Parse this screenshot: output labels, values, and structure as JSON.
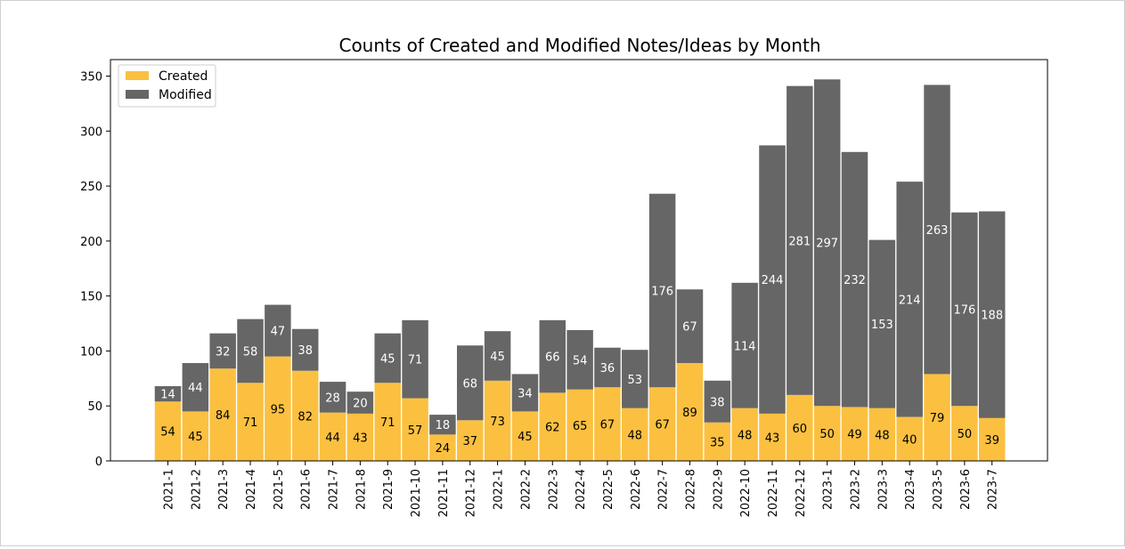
{
  "chart_data": {
    "type": "bar",
    "stacked": true,
    "title": "Counts of Created and Modified Notes/Ideas by Month",
    "xlabel": "",
    "ylabel": "",
    "ylim": [
      0,
      365
    ],
    "yticks": [
      0,
      50,
      100,
      150,
      200,
      250,
      300,
      350
    ],
    "grid": false,
    "legend": "top-left",
    "categories": [
      "2021-1",
      "2021-2",
      "2021-3",
      "2021-4",
      "2021-5",
      "2021-6",
      "2021-7",
      "2021-8",
      "2021-9",
      "2021-10",
      "2021-11",
      "2021-12",
      "2022-1",
      "2022-2",
      "2022-3",
      "2022-4",
      "2022-5",
      "2022-6",
      "2022-7",
      "2022-8",
      "2022-9",
      "2022-10",
      "2022-11",
      "2022-12",
      "2023-1",
      "2023-2",
      "2023-3",
      "2023-4",
      "2023-5",
      "2023-6",
      "2023-7"
    ],
    "series": [
      {
        "name": "Created",
        "color": "#fbc040",
        "label_color": "#000000",
        "values": [
          54,
          45,
          84,
          71,
          95,
          82,
          44,
          43,
          71,
          57,
          24,
          37,
          73,
          45,
          62,
          65,
          67,
          48,
          67,
          89,
          35,
          48,
          43,
          60,
          50,
          49,
          48,
          40,
          79,
          50,
          39
        ]
      },
      {
        "name": "Modified",
        "color": "#666666",
        "label_color": "#ffffff",
        "values": [
          14,
          44,
          32,
          58,
          47,
          38,
          28,
          20,
          45,
          71,
          18,
          68,
          45,
          34,
          66,
          54,
          36,
          53,
          176,
          67,
          38,
          114,
          244,
          281,
          297,
          232,
          153,
          214,
          263,
          176,
          188
        ]
      }
    ]
  }
}
